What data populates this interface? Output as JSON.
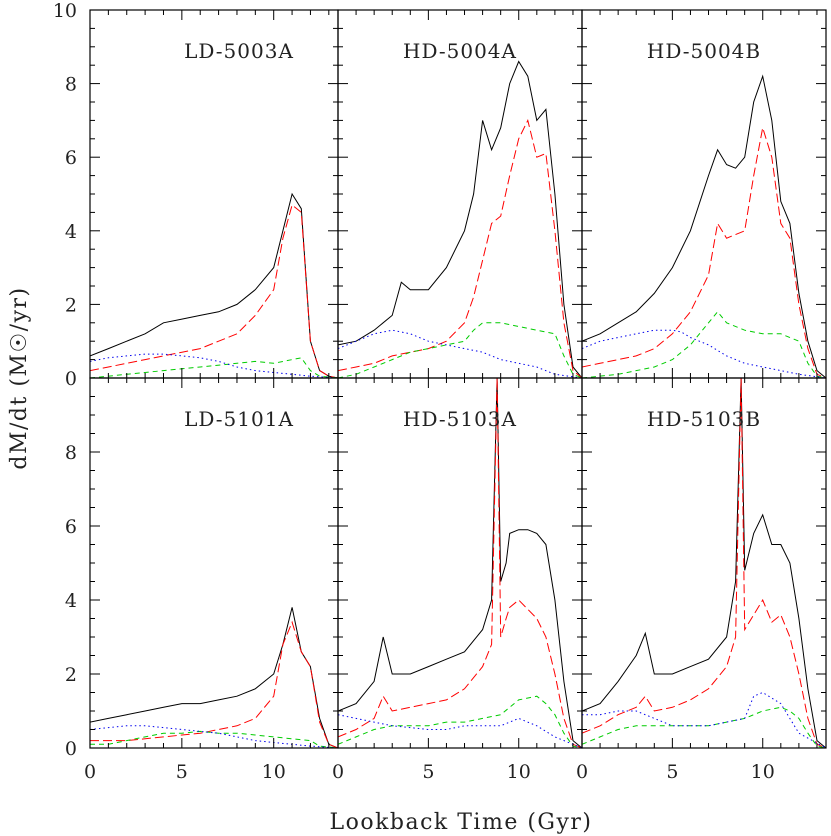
{
  "figure": {
    "xlabel": "Lookback Time (Gyr)",
    "ylabel": "dM/dt (M☉/yr)"
  },
  "chart_data": [
    {
      "type": "line",
      "title": "LD-5003A",
      "xlim": [
        0,
        13.5
      ],
      "ylim": [
        0,
        10
      ],
      "x_ticks": [
        0,
        5,
        10
      ],
      "y_ticks": [
        0,
        2,
        4,
        6,
        8,
        10
      ],
      "series": [
        {
          "color": "#000000",
          "dash": "solid",
          "x": [
            0,
            1,
            2,
            3,
            4,
            5,
            6,
            7,
            8,
            9,
            10,
            10.5,
            11,
            11.5,
            12,
            12.5,
            13,
            13.5
          ],
          "y": [
            0.6,
            0.8,
            1.0,
            1.2,
            1.5,
            1.6,
            1.7,
            1.8,
            2.0,
            2.4,
            3.0,
            4.0,
            5.0,
            4.6,
            1.0,
            0.2,
            0.05,
            0
          ]
        },
        {
          "color": "#ff0000",
          "dash": "long",
          "x": [
            0,
            1,
            2,
            3,
            4,
            5,
            6,
            7,
            8,
            9,
            10,
            10.5,
            11,
            11.5,
            12,
            12.5,
            13,
            13.5
          ],
          "y": [
            0.2,
            0.3,
            0.4,
            0.5,
            0.6,
            0.7,
            0.8,
            1.0,
            1.2,
            1.7,
            2.4,
            3.8,
            4.7,
            4.5,
            1.0,
            0.2,
            0.05,
            0
          ]
        },
        {
          "color": "#00cc00",
          "dash": "short",
          "x": [
            0,
            2,
            4,
            6,
            8,
            9,
            10,
            11,
            11.5,
            12,
            12.5,
            13.5
          ],
          "y": [
            0.0,
            0.1,
            0.2,
            0.3,
            0.4,
            0.45,
            0.4,
            0.5,
            0.55,
            0.2,
            0.05,
            0
          ]
        },
        {
          "color": "#0000ee",
          "dash": "dot",
          "x": [
            0,
            1,
            2,
            3,
            4,
            5,
            6,
            7,
            8,
            9,
            10,
            11,
            12,
            13.5
          ],
          "y": [
            0.45,
            0.55,
            0.6,
            0.65,
            0.65,
            0.6,
            0.55,
            0.45,
            0.3,
            0.2,
            0.15,
            0.1,
            0.05,
            0
          ]
        }
      ]
    },
    {
      "type": "line",
      "title": "HD-5004A",
      "xlim": [
        0,
        13.5
      ],
      "ylim": [
        0,
        10
      ],
      "x_ticks": [
        0,
        5,
        10
      ],
      "y_ticks": [
        2,
        4,
        6,
        8
      ],
      "series": [
        {
          "color": "#000000",
          "dash": "solid",
          "x": [
            0,
            1,
            2,
            3,
            3.5,
            4,
            5,
            6,
            7,
            7.5,
            8,
            8.5,
            9,
            9.5,
            10,
            10.5,
            11,
            11.5,
            12,
            12.5,
            13,
            13.5
          ],
          "y": [
            0.9,
            1.0,
            1.3,
            1.7,
            2.6,
            2.4,
            2.4,
            3.0,
            4.0,
            5.0,
            7.0,
            6.2,
            6.8,
            8.0,
            8.6,
            8.2,
            7.0,
            7.3,
            5.0,
            2.0,
            0.3,
            0
          ]
        },
        {
          "color": "#ff0000",
          "dash": "long",
          "x": [
            0,
            1,
            2,
            3,
            4,
            5,
            6,
            7,
            7.5,
            8,
            8.5,
            9,
            9.5,
            10,
            10.5,
            11,
            11.5,
            12,
            12.5,
            13,
            13.5
          ],
          "y": [
            0.2,
            0.3,
            0.4,
            0.6,
            0.7,
            0.8,
            1.0,
            1.5,
            2.2,
            3.2,
            4.2,
            4.4,
            5.5,
            6.5,
            7.0,
            6.0,
            6.1,
            4.0,
            1.5,
            0.2,
            0
          ]
        },
        {
          "color": "#00cc00",
          "dash": "short",
          "x": [
            0,
            1,
            2,
            3,
            4,
            5,
            6,
            7,
            7.5,
            8,
            9,
            10,
            11,
            12,
            12.5,
            13,
            13.5
          ],
          "y": [
            0.0,
            0.1,
            0.3,
            0.5,
            0.7,
            0.8,
            0.9,
            1.0,
            1.3,
            1.5,
            1.5,
            1.4,
            1.3,
            1.2,
            0.6,
            0.1,
            0
          ]
        },
        {
          "color": "#0000ee",
          "dash": "dot",
          "x": [
            0,
            1,
            2,
            3,
            4,
            5,
            6,
            7,
            8,
            9,
            10,
            11,
            12,
            13.5
          ],
          "y": [
            0.8,
            1.0,
            1.2,
            1.3,
            1.2,
            1.0,
            0.9,
            0.8,
            0.7,
            0.5,
            0.4,
            0.3,
            0.1,
            0
          ]
        }
      ]
    },
    {
      "type": "line",
      "title": "HD-5004B",
      "xlim": [
        0,
        13.5
      ],
      "ylim": [
        0,
        10
      ],
      "x_ticks": [
        0,
        5,
        10
      ],
      "y_ticks": [
        2,
        4,
        6,
        8
      ],
      "series": [
        {
          "color": "#000000",
          "dash": "solid",
          "x": [
            0,
            1,
            2,
            3,
            4,
            5,
            6,
            7,
            7.5,
            8,
            8.5,
            9,
            9.5,
            10,
            10.5,
            11,
            11.5,
            12,
            12.5,
            13,
            13.5
          ],
          "y": [
            1.0,
            1.2,
            1.5,
            1.8,
            2.3,
            3.0,
            4.0,
            5.5,
            6.2,
            5.8,
            5.7,
            6.0,
            7.5,
            8.2,
            7.0,
            4.8,
            4.2,
            2.3,
            1.0,
            0.2,
            0
          ]
        },
        {
          "color": "#ff0000",
          "dash": "long",
          "x": [
            0,
            1,
            2,
            3,
            4,
            5,
            6,
            7,
            7.5,
            8,
            9,
            9.5,
            10,
            10.5,
            11,
            11.5,
            12,
            12.5,
            13,
            13.5
          ],
          "y": [
            0.3,
            0.4,
            0.5,
            0.6,
            0.8,
            1.2,
            1.8,
            2.8,
            4.2,
            3.8,
            4.0,
            5.5,
            6.8,
            6.0,
            4.2,
            3.8,
            2.0,
            0.8,
            0.1,
            0
          ]
        },
        {
          "color": "#00cc00",
          "dash": "short",
          "x": [
            0,
            2,
            4,
            5,
            6,
            7,
            7.5,
            8,
            9,
            10,
            11,
            12,
            12.5,
            13,
            13.5
          ],
          "y": [
            0.0,
            0.1,
            0.3,
            0.5,
            0.9,
            1.5,
            1.8,
            1.5,
            1.3,
            1.2,
            1.2,
            1.0,
            0.4,
            0.05,
            0
          ]
        },
        {
          "color": "#0000ee",
          "dash": "dot",
          "x": [
            0,
            1,
            2,
            3,
            4,
            5,
            5.5,
            6,
            7,
            8,
            9,
            10,
            11,
            12,
            13.5
          ],
          "y": [
            0.8,
            1.0,
            1.1,
            1.2,
            1.3,
            1.3,
            1.25,
            1.1,
            0.9,
            0.6,
            0.4,
            0.3,
            0.2,
            0.1,
            0
          ]
        }
      ]
    },
    {
      "type": "line",
      "title": "LD-5101A",
      "xlim": [
        0,
        13.5
      ],
      "ylim": [
        0,
        10
      ],
      "x_ticks": [
        0,
        5,
        10
      ],
      "y_ticks": [
        0,
        2,
        4,
        6,
        8
      ],
      "series": [
        {
          "color": "#000000",
          "dash": "solid",
          "x": [
            0,
            1,
            2,
            3,
            4,
            5,
            6,
            7,
            8,
            9,
            10,
            10.5,
            11,
            11.5,
            12,
            12.5,
            13,
            13.5
          ],
          "y": [
            0.7,
            0.8,
            0.9,
            1.0,
            1.1,
            1.2,
            1.2,
            1.3,
            1.4,
            1.6,
            2.0,
            2.8,
            3.8,
            2.6,
            2.2,
            0.8,
            0.1,
            0
          ]
        },
        {
          "color": "#ff0000",
          "dash": "long",
          "x": [
            0,
            2,
            4,
            6,
            7,
            8,
            9,
            10,
            10.5,
            11,
            11.5,
            12,
            12.5,
            13,
            13.5
          ],
          "y": [
            0.2,
            0.2,
            0.3,
            0.4,
            0.5,
            0.6,
            0.8,
            1.4,
            2.8,
            3.4,
            2.6,
            2.2,
            0.7,
            0.1,
            0
          ]
        },
        {
          "color": "#00cc00",
          "dash": "short",
          "x": [
            0,
            1,
            2,
            3,
            4,
            5,
            6,
            7,
            8,
            9,
            10,
            11,
            12,
            12.5,
            13.5
          ],
          "y": [
            0.1,
            0.1,
            0.2,
            0.3,
            0.4,
            0.4,
            0.45,
            0.4,
            0.4,
            0.35,
            0.3,
            0.25,
            0.2,
            0.05,
            0
          ]
        },
        {
          "color": "#0000ee",
          "dash": "dot",
          "x": [
            0,
            1,
            2,
            3,
            4,
            5,
            6,
            7,
            8,
            9,
            10,
            11,
            12,
            13.5
          ],
          "y": [
            0.5,
            0.55,
            0.6,
            0.6,
            0.55,
            0.5,
            0.45,
            0.4,
            0.3,
            0.2,
            0.15,
            0.1,
            0.05,
            0
          ]
        }
      ]
    },
    {
      "type": "line",
      "title": "HD-5103A",
      "xlim": [
        0,
        13.5
      ],
      "ylim": [
        0,
        10
      ],
      "x_ticks": [
        0,
        5,
        10
      ],
      "y_ticks": [
        2,
        4,
        6,
        8
      ],
      "series": [
        {
          "color": "#000000",
          "dash": "solid",
          "x": [
            0,
            1,
            2,
            2.5,
            3,
            4,
            5,
            6,
            7,
            8,
            8.5,
            8.8,
            9,
            9.3,
            9.5,
            10,
            10.5,
            11,
            11.5,
            12,
            12.5,
            13,
            13.5
          ],
          "y": [
            1.0,
            1.2,
            1.8,
            3.0,
            2.0,
            2.0,
            2.2,
            2.4,
            2.6,
            3.2,
            4.0,
            10,
            4.5,
            5.0,
            5.8,
            5.9,
            5.9,
            5.8,
            5.5,
            4.0,
            1.8,
            0.2,
            0
          ]
        },
        {
          "color": "#ff0000",
          "dash": "long",
          "x": [
            0,
            1,
            2,
            2.5,
            3,
            4,
            5,
            6,
            7,
            8,
            8.5,
            8.8,
            9,
            9.3,
            9.5,
            10,
            11,
            11.5,
            12,
            12.5,
            13,
            13.5
          ],
          "y": [
            0.3,
            0.5,
            0.8,
            1.4,
            1.0,
            1.1,
            1.2,
            1.3,
            1.6,
            2.2,
            2.8,
            10,
            3.0,
            3.5,
            3.8,
            4.0,
            3.5,
            3.0,
            2.0,
            0.8,
            0.1,
            0
          ]
        },
        {
          "color": "#00cc00",
          "dash": "short",
          "x": [
            0,
            1,
            2,
            3,
            4,
            5,
            6,
            7,
            8,
            9,
            10,
            11,
            11.5,
            12,
            12.5,
            13,
            13.5
          ],
          "y": [
            0.1,
            0.3,
            0.5,
            0.6,
            0.6,
            0.6,
            0.7,
            0.7,
            0.8,
            0.9,
            1.3,
            1.4,
            1.2,
            0.9,
            0.4,
            0.05,
            0
          ]
        },
        {
          "color": "#0000ee",
          "dash": "dot",
          "x": [
            0,
            1,
            2,
            3,
            4,
            5,
            6,
            7,
            8,
            9,
            10,
            11,
            12,
            13.5
          ],
          "y": [
            0.9,
            0.8,
            0.7,
            0.6,
            0.55,
            0.5,
            0.5,
            0.6,
            0.6,
            0.6,
            0.8,
            0.6,
            0.3,
            0
          ]
        }
      ]
    },
    {
      "type": "line",
      "title": "HD-5103B",
      "xlim": [
        0,
        13.5
      ],
      "ylim": [
        0,
        10
      ],
      "x_ticks": [
        0,
        5,
        10
      ],
      "y_ticks": [
        2,
        4,
        6,
        8
      ],
      "series": [
        {
          "color": "#000000",
          "dash": "solid",
          "x": [
            0,
            1,
            2,
            3,
            3.5,
            4,
            5,
            6,
            7,
            8,
            8.5,
            8.8,
            9,
            9.5,
            10,
            10.5,
            11,
            11.5,
            12,
            12.5,
            13,
            13.5
          ],
          "y": [
            1.0,
            1.2,
            1.8,
            2.5,
            3.1,
            2.0,
            2.0,
            2.2,
            2.4,
            3.0,
            4.5,
            10,
            4.8,
            5.8,
            6.3,
            5.5,
            5.5,
            5.0,
            3.5,
            1.6,
            0.2,
            0
          ]
        },
        {
          "color": "#ff0000",
          "dash": "long",
          "x": [
            0,
            1,
            2,
            3,
            3.5,
            4,
            5,
            6,
            7,
            8,
            8.5,
            8.8,
            9,
            9.5,
            10,
            10.5,
            11,
            11.5,
            12,
            12.5,
            13,
            13.5
          ],
          "y": [
            0.4,
            0.6,
            0.9,
            1.1,
            1.4,
            1.0,
            1.1,
            1.3,
            1.6,
            2.2,
            3.0,
            10,
            3.2,
            3.6,
            4.0,
            3.4,
            3.6,
            3.0,
            2.0,
            0.8,
            0.1,
            0
          ]
        },
        {
          "color": "#00cc00",
          "dash": "short",
          "x": [
            0,
            1,
            2,
            3,
            4,
            5,
            6,
            7,
            8,
            9,
            10,
            11,
            11.5,
            12,
            12.5,
            13,
            13.5
          ],
          "y": [
            0.1,
            0.3,
            0.5,
            0.6,
            0.6,
            0.6,
            0.6,
            0.6,
            0.7,
            0.8,
            1.0,
            1.1,
            1.0,
            0.8,
            0.4,
            0.05,
            0
          ]
        },
        {
          "color": "#0000ee",
          "dash": "dot",
          "x": [
            0,
            1,
            2,
            3,
            4,
            5,
            6,
            7,
            8,
            9,
            9.5,
            10,
            11,
            12,
            13.5
          ],
          "y": [
            0.9,
            0.9,
            1.0,
            1.0,
            0.8,
            0.6,
            0.6,
            0.6,
            0.7,
            0.8,
            1.4,
            1.5,
            1.2,
            0.4,
            0
          ]
        }
      ]
    }
  ]
}
